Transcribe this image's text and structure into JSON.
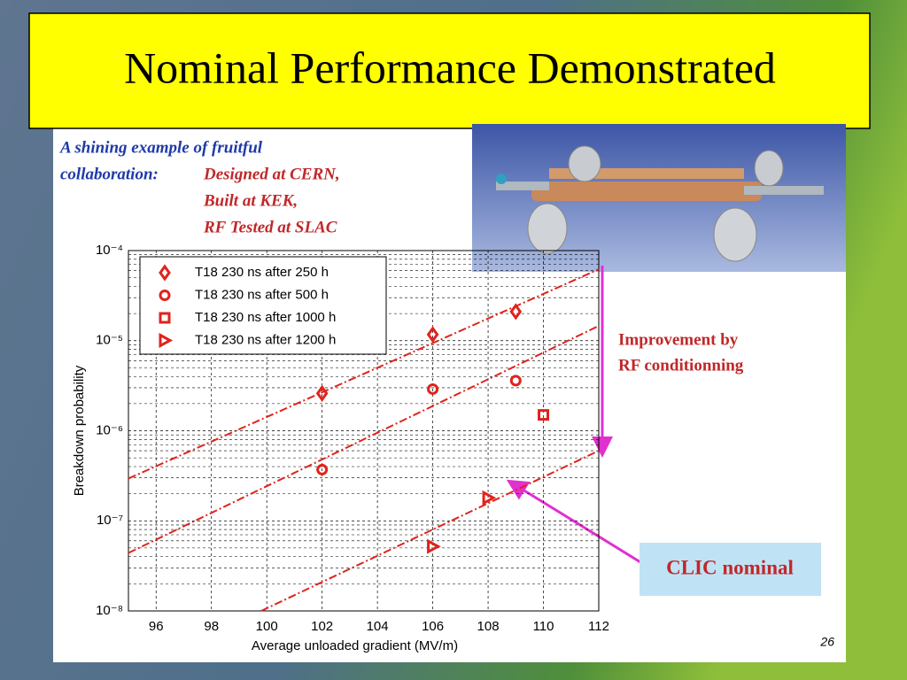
{
  "slide": {
    "title": "Nominal Performance Demonstrated",
    "intro_line1": "A shining example of fruitful",
    "intro_line2": "collaboration:",
    "credit_line1": "Designed at CERN,",
    "credit_line2": "Built at KEK,",
    "credit_line3": "RF Tested at SLAC",
    "improvement_line1": "Improvement by",
    "improvement_line2": "RF conditionning",
    "clic_label": "CLIC nominal",
    "page_number": "26"
  },
  "chart_data": {
    "type": "scatter",
    "xlabel": "Average unloaded gradient (MV/m)",
    "ylabel": "Breakdown probability",
    "xlim": [
      95,
      112
    ],
    "xticks": [
      96,
      98,
      100,
      102,
      104,
      106,
      108,
      110,
      112
    ],
    "ylim": [
      1e-08,
      0.0001
    ],
    "yscale": "log",
    "yticks": [
      {
        "value": 1e-08,
        "label": "10⁻⁸"
      },
      {
        "value": 1e-07,
        "label": "10⁻⁷"
      },
      {
        "value": 1e-06,
        "label": "10⁻⁶"
      },
      {
        "value": 1e-05,
        "label": "10⁻⁵"
      },
      {
        "value": 0.0001,
        "label": "10⁻⁴"
      }
    ],
    "grid": true,
    "legend": "upper left",
    "series": [
      {
        "name": "T18 230 ns after 250 h",
        "color": "#e0231c",
        "marker": "diamond",
        "x": [
          102,
          106,
          109
        ],
        "values": [
          2.6e-06,
          1.17e-05,
          2.1e-05
        ]
      },
      {
        "name": "T18 230 ns after 500 h",
        "color": "#e0231c",
        "marker": "circle",
        "x": [
          102,
          106,
          109
        ],
        "values": [
          3.7e-07,
          2.9e-06,
          3.6e-06
        ]
      },
      {
        "name": "T18 230 ns after 1000 h",
        "color": "#e0231c",
        "marker": "square",
        "x": [
          110
        ],
        "values": [
          1.5e-06
        ]
      },
      {
        "name": "T18 230 ns after 1200 h",
        "color": "#e0231c",
        "marker": "triangle-right",
        "x": [
          106,
          108
        ],
        "values": [
          5.2e-08,
          1.8e-07
        ]
      }
    ],
    "fits": [
      {
        "color": "#e0231c",
        "x": [
          95,
          112
        ],
        "values": [
          2.95e-07,
          6.2e-05
        ]
      },
      {
        "color": "#e0231c",
        "x": [
          95,
          112
        ],
        "values": [
          4.4e-08,
          1.46e-05
        ]
      },
      {
        "color": "#e0231c",
        "x": [
          99.8,
          112
        ],
        "values": [
          1e-08,
          6e-07
        ]
      }
    ]
  }
}
